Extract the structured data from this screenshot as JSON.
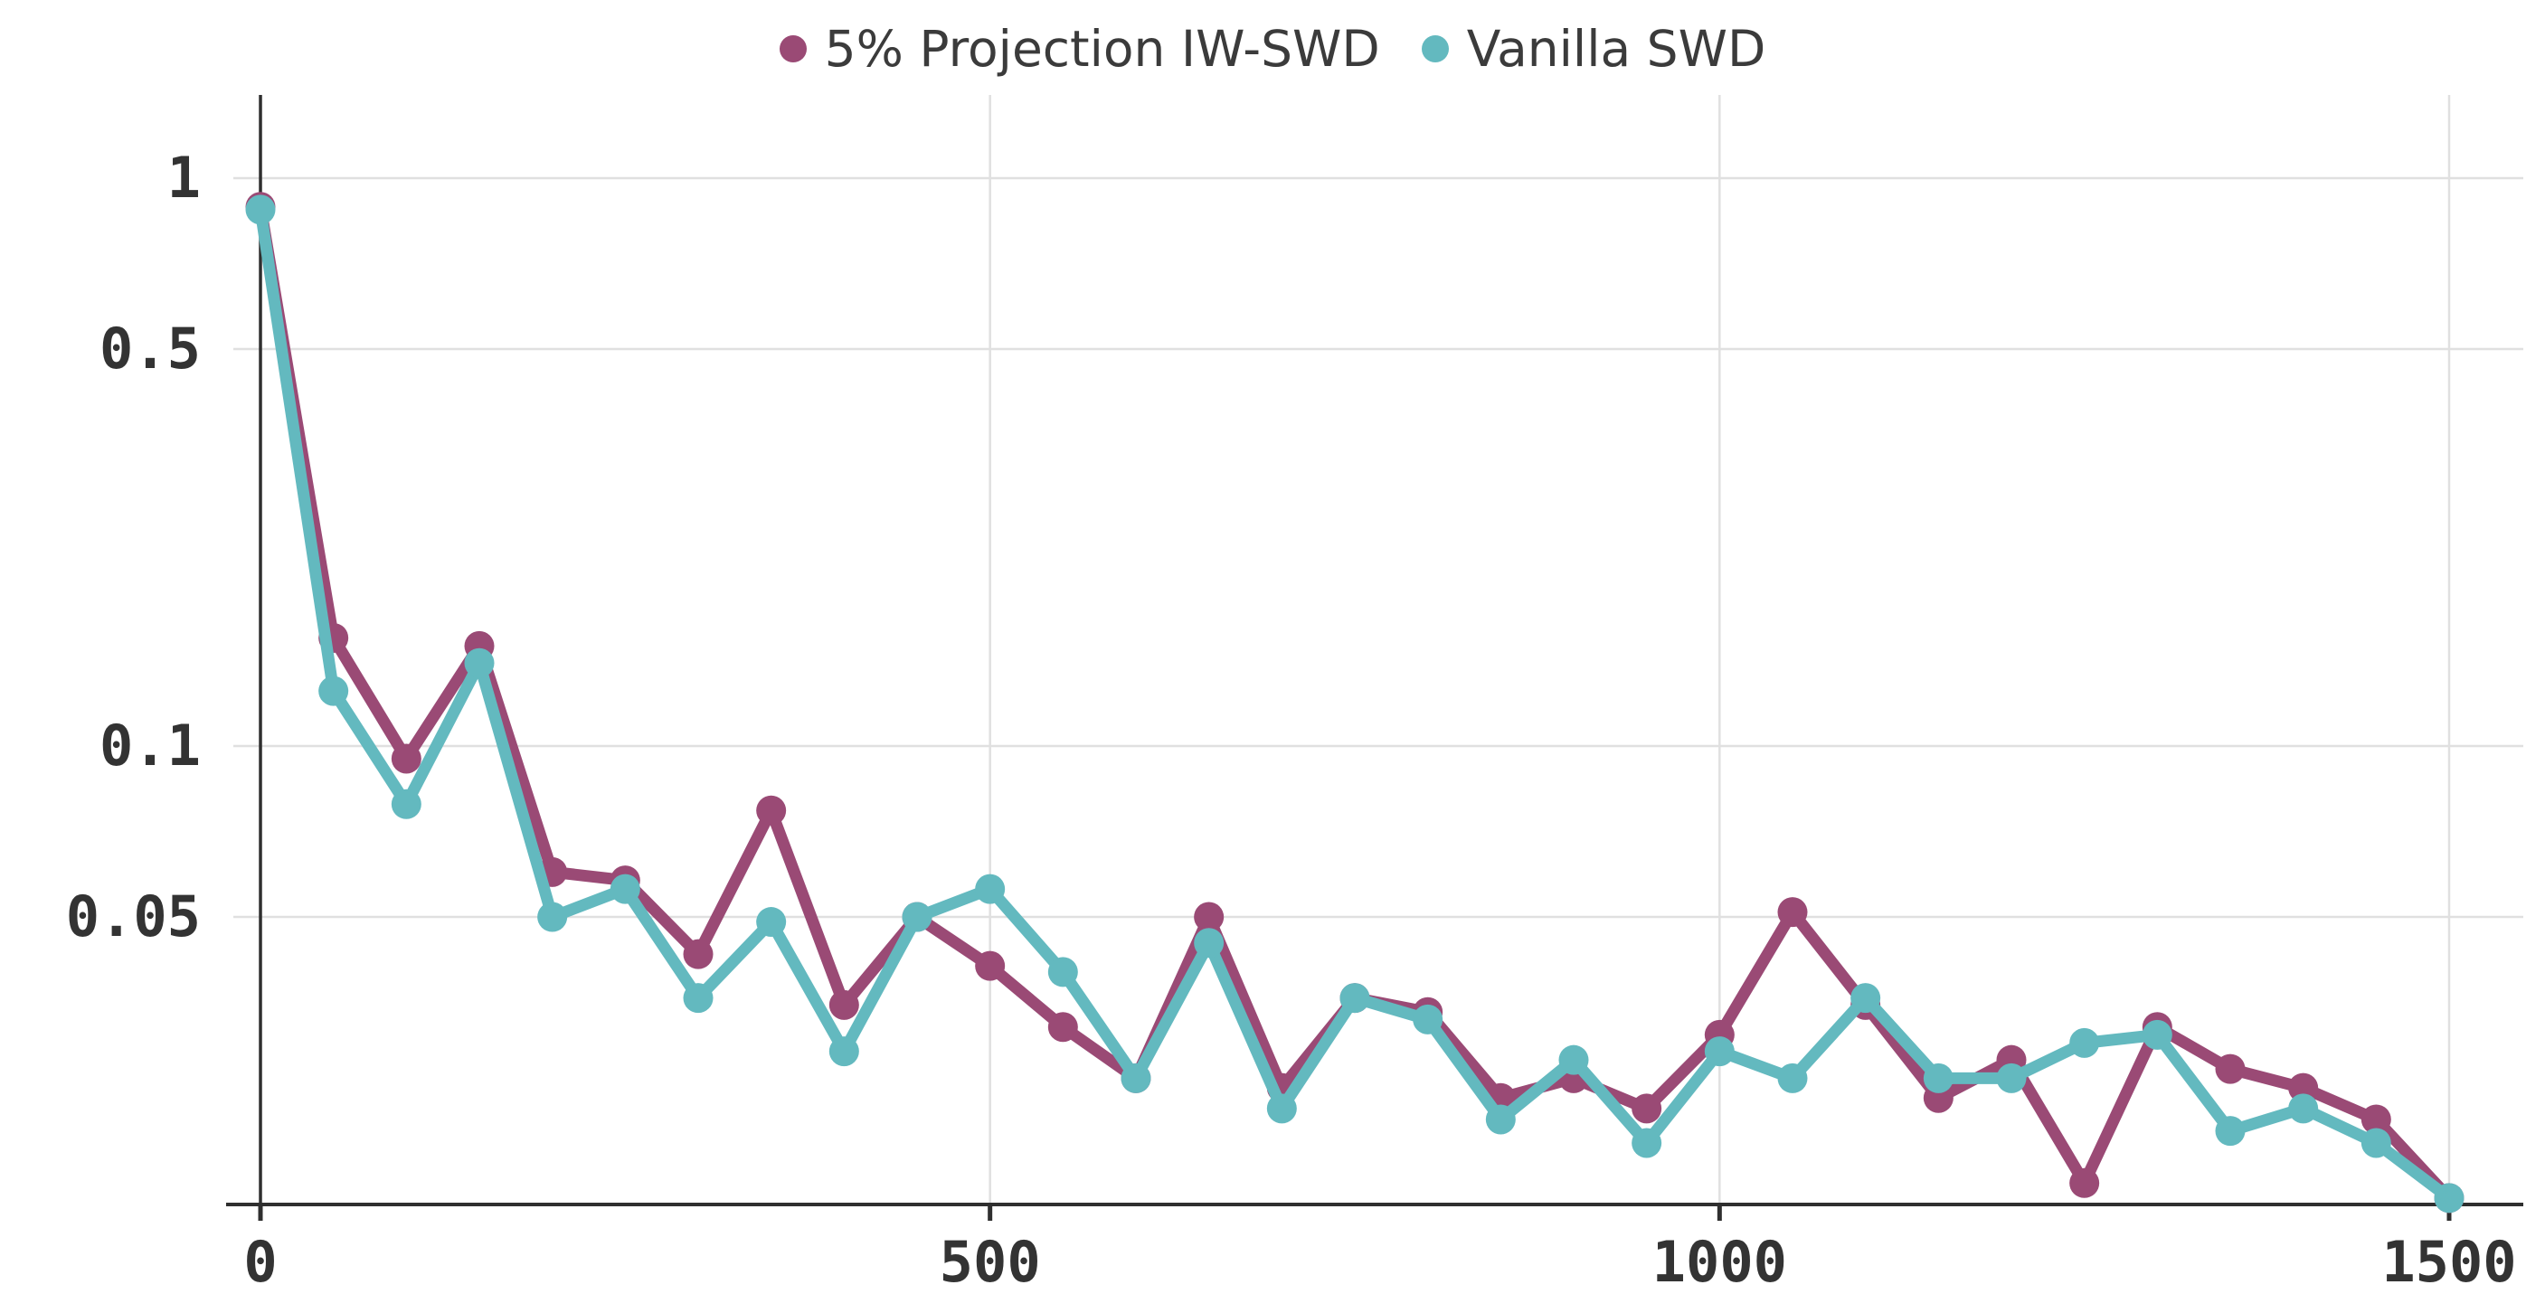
{
  "chart_data": {
    "type": "line",
    "title": "",
    "xlabel": "",
    "ylabel": "",
    "yscale": "log",
    "grid": true,
    "legend_position": "top-center",
    "xlim": [
      0,
      1500
    ],
    "ylim": [
      0.0156,
      1.4
    ],
    "xticks": [
      0,
      500,
      1000,
      1500
    ],
    "xtick_labels": [
      "0",
      "500",
      "1000",
      "1500"
    ],
    "yticks": [
      1,
      0.5,
      0.1,
      0.05
    ],
    "ytick_labels": [
      "1",
      "0.5",
      "0.1",
      "0.05"
    ],
    "x": [
      0,
      50,
      100,
      150,
      200,
      250,
      300,
      350,
      400,
      450,
      500,
      550,
      600,
      650,
      700,
      750,
      800,
      850,
      900,
      950,
      1000,
      1050,
      1100,
      1150,
      1200,
      1250,
      1300,
      1350,
      1400,
      1450,
      1500
    ],
    "series": [
      {
        "name": "5% Projection IW-SWD",
        "color": "#9a4a75",
        "values": [
          0.89,
          0.155,
          0.095,
          0.15,
          0.06,
          0.058,
          0.043,
          0.077,
          0.035,
          0.05,
          0.041,
          0.032,
          0.026,
          0.05,
          0.025,
          0.036,
          0.034,
          0.024,
          0.026,
          0.023,
          0.031,
          0.051,
          0.035,
          0.024,
          0.028,
          0.017,
          0.032,
          0.027,
          0.025,
          0.022,
          0.016
        ]
      },
      {
        "name": "Vanilla SWD",
        "color": "#63b9bf",
        "values": [
          0.88,
          0.125,
          0.079,
          0.14,
          0.05,
          0.056,
          0.036,
          0.049,
          0.029,
          0.05,
          0.056,
          0.04,
          0.026,
          0.045,
          0.023,
          0.036,
          0.033,
          0.022,
          0.028,
          0.02,
          0.029,
          0.026,
          0.036,
          0.026,
          0.026,
          0.03,
          0.031,
          0.021,
          0.023,
          0.02,
          0.016
        ]
      }
    ],
    "colors": {
      "grid": "#e0e0e0",
      "axis": "#2f2f2f",
      "tick_text": "#333333",
      "legend_text": "#3b3b3b",
      "background": "#ffffff"
    }
  }
}
